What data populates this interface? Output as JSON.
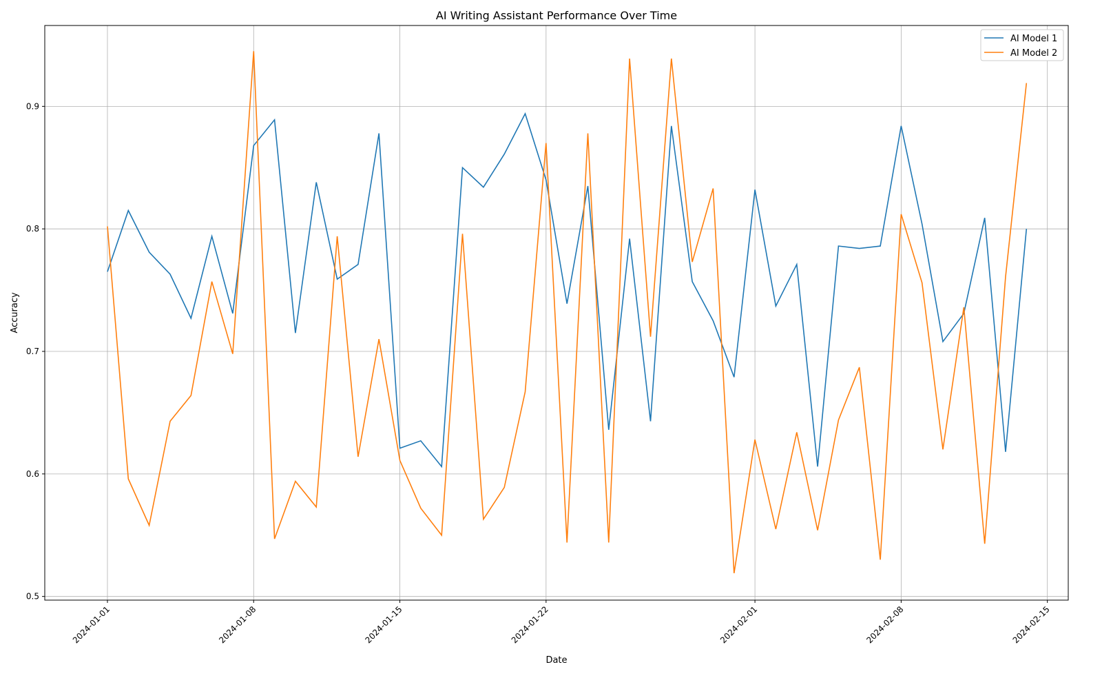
{
  "chart_data": {
    "type": "line",
    "title": "AI Writing Assistant Performance Over Time",
    "xlabel": "Date",
    "ylabel": "Accuracy",
    "x_start": "2024-01-01",
    "x": [
      "2024-01-01",
      "2024-01-02",
      "2024-01-03",
      "2024-01-04",
      "2024-01-05",
      "2024-01-06",
      "2024-01-07",
      "2024-01-08",
      "2024-01-09",
      "2024-01-10",
      "2024-01-11",
      "2024-01-12",
      "2024-01-13",
      "2024-01-14",
      "2024-01-15",
      "2024-01-16",
      "2024-01-17",
      "2024-01-18",
      "2024-01-19",
      "2024-01-20",
      "2024-01-21",
      "2024-01-22",
      "2024-01-23",
      "2024-01-24",
      "2024-01-25",
      "2024-01-26",
      "2024-01-27",
      "2024-01-28",
      "2024-01-29",
      "2024-01-30",
      "2024-01-31",
      "2024-02-01",
      "2024-02-02",
      "2024-02-03",
      "2024-02-04",
      "2024-02-05",
      "2024-02-06",
      "2024-02-07",
      "2024-02-08",
      "2024-02-09",
      "2024-02-10",
      "2024-02-11",
      "2024-02-12",
      "2024-02-13",
      "2024-02-14"
    ],
    "xticks": [
      "2024-01-01",
      "2024-01-08",
      "2024-01-15",
      "2024-01-22",
      "2024-02-01",
      "2024-02-08",
      "2024-02-15"
    ],
    "yticks": [
      0.5,
      0.6,
      0.7,
      0.8,
      0.9
    ],
    "xlim": [
      "2023-12-29",
      "2024-02-16"
    ],
    "ylim": [
      0.497,
      0.966
    ],
    "grid": true,
    "legend": "top-right",
    "series": [
      {
        "name": "AI Model 1",
        "color": "#1f77b4",
        "values": [
          0.765,
          0.815,
          0.781,
          0.763,
          0.727,
          0.794,
          0.731,
          0.868,
          0.889,
          0.715,
          0.838,
          0.759,
          0.771,
          0.878,
          0.621,
          0.627,
          0.606,
          0.85,
          0.834,
          0.861,
          0.894,
          0.84,
          0.739,
          0.835,
          0.636,
          0.792,
          0.643,
          0.884,
          0.757,
          0.725,
          0.679,
          0.832,
          0.737,
          0.771,
          0.606,
          0.786,
          0.784,
          0.786,
          0.884,
          0.804,
          0.708,
          0.731,
          0.809,
          0.618,
          0.8
        ]
      },
      {
        "name": "AI Model 2",
        "color": "#ff7f0e",
        "values": [
          0.802,
          0.596,
          0.558,
          0.643,
          0.664,
          0.757,
          0.698,
          0.945,
          0.547,
          0.594,
          0.573,
          0.794,
          0.614,
          0.71,
          0.611,
          0.572,
          0.55,
          0.796,
          0.563,
          0.589,
          0.667,
          0.87,
          0.544,
          0.878,
          0.544,
          0.939,
          0.712,
          0.939,
          0.773,
          0.833,
          0.519,
          0.628,
          0.555,
          0.634,
          0.554,
          0.644,
          0.687,
          0.53,
          0.812,
          0.756,
          0.62,
          0.736,
          0.543,
          0.761,
          0.919
        ]
      }
    ]
  }
}
